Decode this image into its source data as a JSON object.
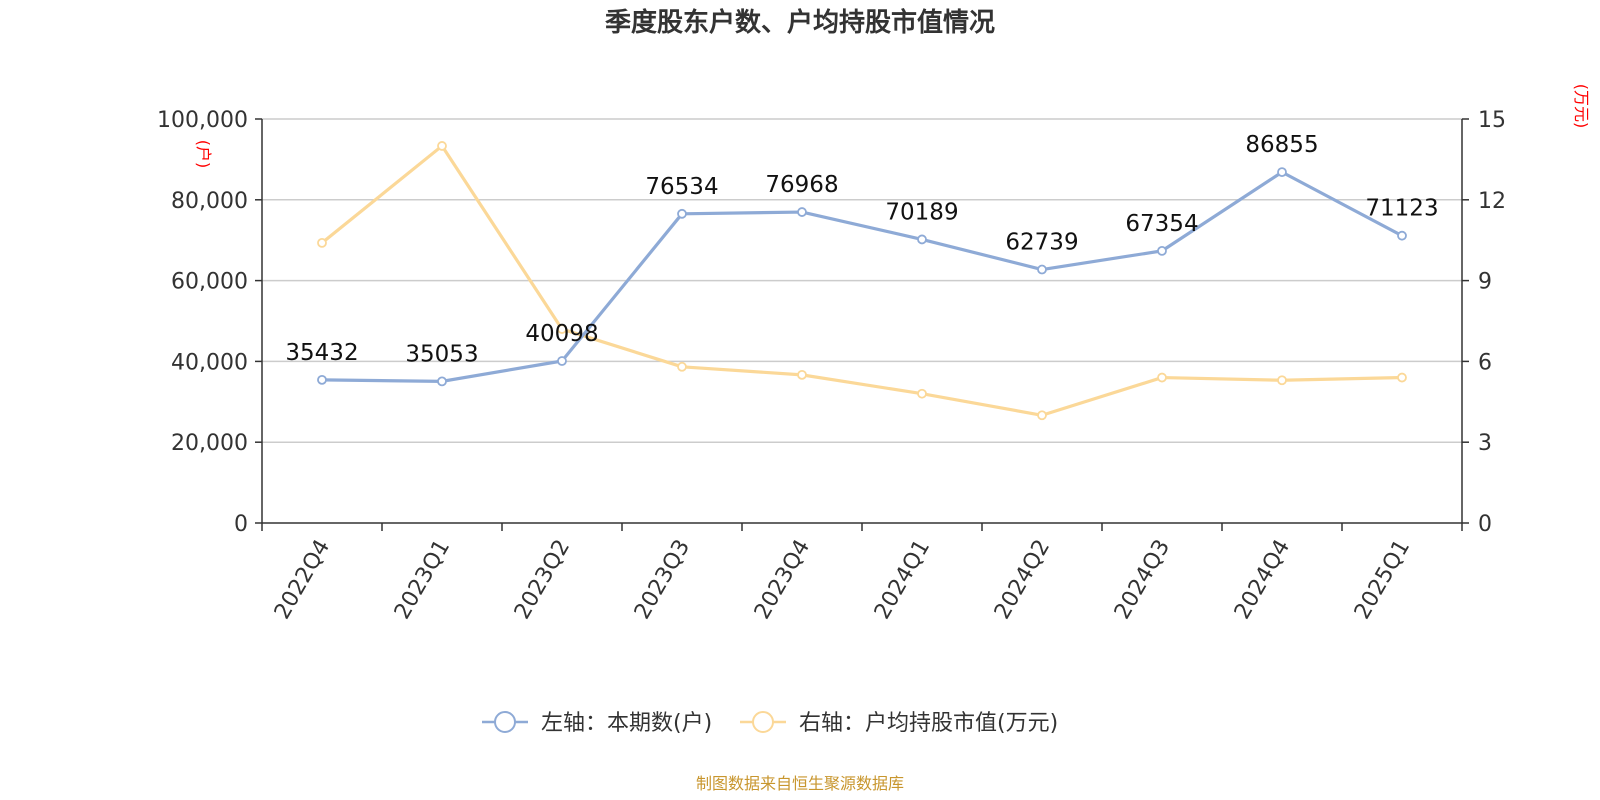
{
  "chart_data": {
    "type": "line",
    "title": "季度股东户数、户均持股市值情况",
    "categories": [
      "2022Q4",
      "2023Q1",
      "2023Q2",
      "2023Q3",
      "2023Q4",
      "2024Q1",
      "2024Q2",
      "2024Q3",
      "2024Q4",
      "2025Q1"
    ],
    "left_axis": {
      "unit": "(户)",
      "ylim": [
        0,
        100000
      ],
      "ticks": [
        0,
        20000,
        40000,
        60000,
        80000,
        100000
      ],
      "tick_labels": [
        "0",
        "20,000",
        "40,000",
        "60,000",
        "80,000",
        "100,000"
      ]
    },
    "right_axis": {
      "unit": "(万元)",
      "ylim": [
        0,
        15
      ],
      "ticks": [
        0,
        3,
        6,
        9,
        12,
        15
      ],
      "tick_labels": [
        "0",
        "3",
        "6",
        "9",
        "12",
        "15"
      ]
    },
    "series": [
      {
        "name": "左轴：本期数(户)",
        "axis": "left",
        "color": "#8eaad6",
        "values": [
          35432,
          35053,
          40098,
          76534,
          76968,
          70189,
          62739,
          67354,
          86855,
          71123
        ],
        "data_labels": [
          "35432",
          "35053",
          "40098",
          "76534",
          "76968",
          "70189",
          "62739",
          "67354",
          "86855",
          "71123"
        ]
      },
      {
        "name": "右轴：户均持股市值(万元)",
        "axis": "right",
        "color": "#fbd898",
        "values": [
          10.4,
          14.0,
          7.2,
          5.8,
          5.5,
          4.8,
          4.0,
          5.4,
          5.3,
          5.4
        ]
      }
    ],
    "grid": true,
    "legend_position": "bottom-center",
    "source": "制图数据来自恒生聚源数据库"
  }
}
